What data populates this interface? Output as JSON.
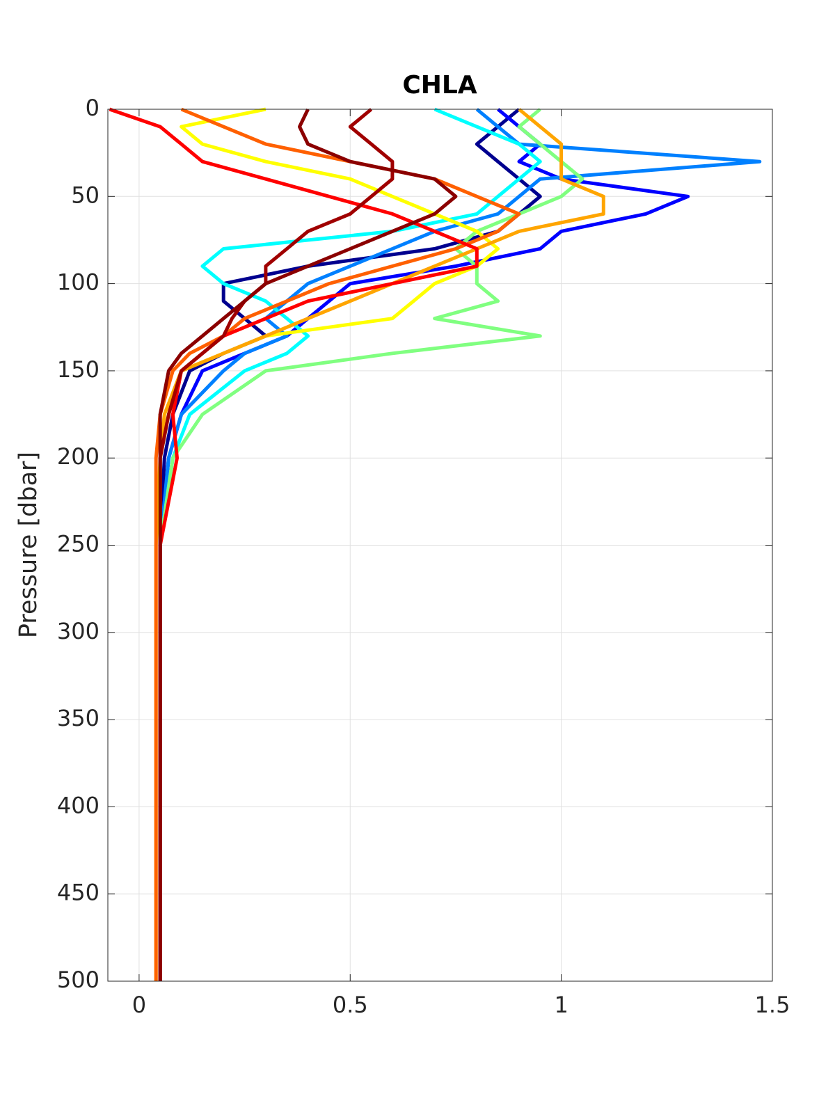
{
  "chart_data": {
    "type": "profile",
    "title": "CHLA",
    "ylabel": "Pressure [dbar]",
    "y": [
      0,
      10,
      20,
      30,
      40,
      50,
      60,
      70,
      80,
      90,
      100,
      110,
      120,
      130,
      140,
      150,
      175,
      200,
      250,
      300,
      350,
      400,
      450,
      500
    ],
    "series": [
      {
        "color": "#00008f",
        "values": [
          0.9,
          0.85,
          0.8,
          0.85,
          0.9,
          0.95,
          0.9,
          0.85,
          0.7,
          0.4,
          0.2,
          0.2,
          0.25,
          0.3,
          0.2,
          0.12,
          0.08,
          0.06,
          0.05,
          0.05,
          0.05,
          0.05,
          0.05,
          0.05
        ]
      },
      {
        "color": "#0000ff",
        "values": [
          0.85,
          0.9,
          0.95,
          0.9,
          1.0,
          1.3,
          1.2,
          1.0,
          0.95,
          0.75,
          0.5,
          0.45,
          0.4,
          0.35,
          0.25,
          0.15,
          0.1,
          0.07,
          0.05,
          0.05,
          0.05,
          0.05,
          0.05,
          0.05
        ]
      },
      {
        "color": "#0080ff",
        "values": [
          0.8,
          0.85,
          0.9,
          1.47,
          0.95,
          0.9,
          0.85,
          0.7,
          0.6,
          0.5,
          0.4,
          0.35,
          0.3,
          0.35,
          0.25,
          0.2,
          0.1,
          0.07,
          0.05,
          0.05,
          0.05,
          0.05,
          0.05,
          0.05
        ]
      },
      {
        "color": "#00ffff",
        "values": [
          0.7,
          0.8,
          0.9,
          0.95,
          0.9,
          0.85,
          0.8,
          0.6,
          0.2,
          0.15,
          0.2,
          0.3,
          0.35,
          0.4,
          0.35,
          0.25,
          0.12,
          0.08,
          0.05,
          0.05,
          0.05,
          0.05,
          0.05,
          0.05
        ]
      },
      {
        "color": "#80ff80",
        "values": [
          0.95,
          0.9,
          0.95,
          1.0,
          1.05,
          1.0,
          0.9,
          0.8,
          0.75,
          0.8,
          0.8,
          0.85,
          0.7,
          0.95,
          0.6,
          0.3,
          0.15,
          0.08,
          0.05,
          0.05,
          0.05,
          0.05,
          0.05,
          0.05
        ]
      },
      {
        "color": "#ffff00",
        "values": [
          0.3,
          0.1,
          0.15,
          0.3,
          0.5,
          0.6,
          0.7,
          0.8,
          0.85,
          0.8,
          0.7,
          0.65,
          0.6,
          0.3,
          0.2,
          0.1,
          0.07,
          0.05,
          0.04,
          0.04,
          0.04,
          0.04,
          0.04,
          0.04
        ]
      },
      {
        "color": "#ffa500",
        "values": [
          0.9,
          0.95,
          1.0,
          1.0,
          1.0,
          1.1,
          1.1,
          0.9,
          0.8,
          0.7,
          0.6,
          0.5,
          0.4,
          0.3,
          0.2,
          0.1,
          0.06,
          0.05,
          0.05,
          0.05,
          0.05,
          0.05,
          0.05,
          0.05
        ]
      },
      {
        "color": "#ff6000",
        "values": [
          0.1,
          0.2,
          0.3,
          0.5,
          0.7,
          0.8,
          0.9,
          0.85,
          0.75,
          0.6,
          0.45,
          0.35,
          0.25,
          0.2,
          0.12,
          0.08,
          0.05,
          0.04,
          0.04,
          0.04,
          0.04,
          0.04,
          0.04,
          0.04
        ]
      },
      {
        "color": "#ff0000",
        "values": [
          -0.07,
          0.05,
          0.1,
          0.15,
          0.3,
          0.45,
          0.6,
          0.7,
          0.8,
          0.8,
          0.6,
          0.4,
          0.3,
          0.2,
          0.15,
          0.1,
          0.08,
          0.09,
          0.05,
          0.05,
          0.05,
          0.05,
          0.05,
          0.05
        ]
      },
      {
        "color": "#a00000",
        "values": [
          0.55,
          0.5,
          0.55,
          0.6,
          0.6,
          0.55,
          0.5,
          0.4,
          0.35,
          0.3,
          0.3,
          0.25,
          0.22,
          0.2,
          0.15,
          0.1,
          0.07,
          0.05,
          0.05,
          0.05,
          0.05,
          0.05,
          0.05,
          0.05
        ]
      },
      {
        "color": "#8b0000",
        "values": [
          0.4,
          0.38,
          0.4,
          0.5,
          0.7,
          0.75,
          0.7,
          0.6,
          0.5,
          0.4,
          0.3,
          0.25,
          0.2,
          0.15,
          0.1,
          0.07,
          0.05,
          0.05,
          0.05,
          0.05,
          0.05,
          0.05,
          0.05,
          0.05
        ]
      }
    ],
    "xlim": [
      -0.074,
      1.5
    ],
    "xticks": [
      0,
      0.5,
      1,
      1.5
    ],
    "ylim": [
      0,
      500
    ],
    "yticks": [
      0,
      50,
      100,
      150,
      200,
      250,
      300,
      350,
      400,
      450,
      500
    ],
    "y_reversed": true,
    "grid": true
  }
}
